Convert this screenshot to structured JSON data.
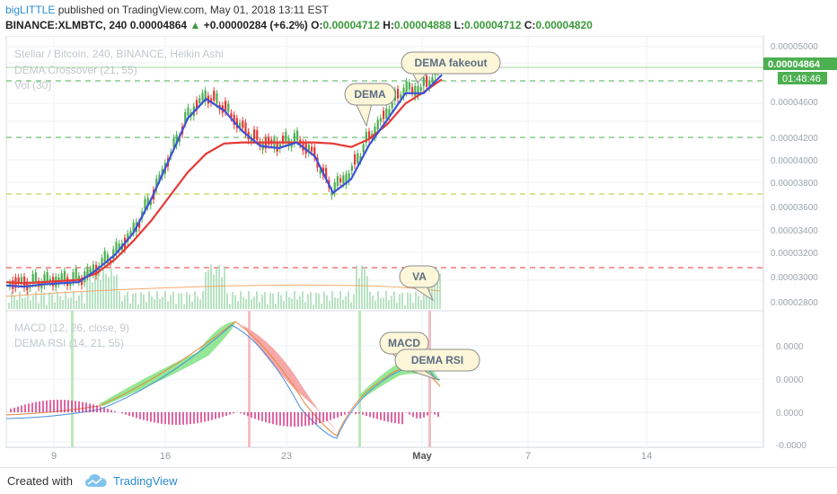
{
  "header": {
    "author": "bigLITTLE",
    "published": "published on TradingView.com, May 01, 2018 13:11 EST",
    "symbol": "BINANCE:XLMBTC, 240",
    "last": "0.00004864",
    "change_arrow": "▲",
    "change": "+0.00000284 (+6.2%)",
    "open_label": "O:",
    "open": "0.00004712",
    "high_label": "H:",
    "high": "0.00004888",
    "low_label": "L:",
    "low": "0.00004712",
    "close_label": "C:",
    "close": "0.00004820"
  },
  "legend": {
    "main_title": "Stellar / Bitcoin, 240, BINANCE, Heikin Ashi",
    "indicator1": "DEMA Crossover (21, 55)",
    "indicator2": "Vol (30)",
    "sub1": "MACD (12, 26, close, 9)",
    "sub2": "DEMA RSI (14, 21, 55)"
  },
  "price_axis": {
    "labels": [
      "0.00005000",
      "0.00004600",
      "0.00004200",
      "0.00004000",
      "0.00003800",
      "0.00003600",
      "0.00003400",
      "0.00003200",
      "0.00003000",
      "0.00002800"
    ],
    "current_price": "0.00004864",
    "countdown": "01:48:46"
  },
  "sub_axis": {
    "labels": [
      "0.0000",
      "0.0000",
      "0.0000",
      "-0.0000"
    ]
  },
  "time_axis": {
    "labels": [
      "9",
      "16",
      "23",
      "May",
      "7",
      "14"
    ]
  },
  "annotations": {
    "dema_fakeout": "DEMA fakeout",
    "dema": "DEMA",
    "va": "VA",
    "macd": "MACD",
    "dema_rsi": "DEMA RSI"
  },
  "colors": {
    "candle_up": "#4caf50",
    "candle_down": "#e53935",
    "dema_fast": "#3f51d6",
    "dema_slow": "#e53935",
    "volume": "#a8dcb4",
    "macd_up_fill": "#8ee68e",
    "macd_down_fill": "#f5a3a3",
    "histogram": "#d63384",
    "callout_fill": "#fdf6d8"
  },
  "footer": {
    "created_with": "Created with",
    "brand": "TradingView"
  },
  "chart_data": {
    "type": "line",
    "title": "Stellar / Bitcoin, 240, BINANCE, Heikin Ashi",
    "x_ticks": [
      "9",
      "16",
      "23",
      "May",
      "7",
      "14"
    ],
    "ylim": [
      2.75e-05,
      5.15e-05
    ],
    "series": [
      {
        "name": "DEMA Crossover (21, 55)",
        "values": [
          3e-05,
          2.99e-05,
          3e-05,
          3.01e-05,
          3.02e-05,
          3.08e-05,
          3.2e-05,
          3.36e-05,
          3.54e-05,
          3.75e-05,
          3.96e-05,
          4.12e-05,
          4.21e-05,
          4.22e-05,
          4.22e-05,
          4.22e-05,
          4.22e-05,
          4.22e-05,
          4.21e-05,
          4.18e-05,
          4.25e-05,
          4.38e-05,
          4.56e-05,
          4.66e-05,
          4.77e-05
        ]
      },
      {
        "name": "DEMA Crossover (21, 55)",
        "values": [
          2.97e-05,
          2.96e-05,
          2.98e-05,
          2.99e-05,
          3e-05,
          3.11e-05,
          3.24e-05,
          3.43e-05,
          3.73e-05,
          4.08e-05,
          4.43e-05,
          4.6e-05,
          4.5e-05,
          4.32e-05,
          4.19e-05,
          4.17e-05,
          4.22e-05,
          4.1e-05,
          3.78e-05,
          3.9e-05,
          4.2e-05,
          4.42e-05,
          4.65e-05,
          4.65e-05,
          4.81e-05
        ]
      }
    ],
    "annotations": [
      "DEMA fakeout",
      "DEMA",
      "VA",
      "MACD",
      "DEMA RSI"
    ],
    "grid": true
  }
}
